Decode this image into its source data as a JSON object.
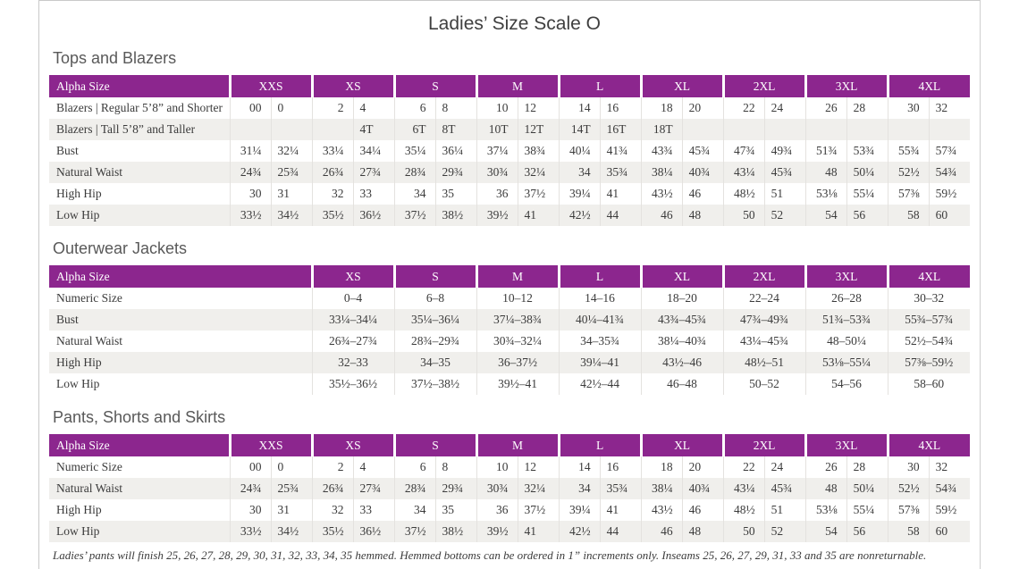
{
  "page": {
    "title": "Ladies’ Size Scale O",
    "footnote": "Ladies’ pants will finish 25, 26, 27, 28, 29, 30, 31, 32, 33, 34, 35 hemmed. Hemmed bottoms can be ordered in 1” increments only. Inseams 25, 26, 27, 29, 31, 33 and 35 are nonreturnable."
  },
  "colors": {
    "header_purple": "#8c268e",
    "stripe_gray": "#f0efec",
    "grid_line": "#e4e2df",
    "page_border": "#c9c9c9",
    "heading_gray": "#595959",
    "text_dark": "#3b3b3b"
  },
  "tables": [
    {
      "id": "tops-and-blazers",
      "heading": "Tops and Blazers",
      "layout": "paired",
      "header_label": "Alpha Size",
      "sizes": [
        "XXS",
        "XS",
        "S",
        "M",
        "L",
        "XL",
        "2XL",
        "3XL",
        "4XL"
      ],
      "rows": [
        {
          "label": "Blazers  |  Regular 5’8” and Shorter",
          "values": [
            "00",
            "0",
            "2",
            "4",
            "6",
            "8",
            "10",
            "12",
            "14",
            "16",
            "18",
            "20",
            "22",
            "24",
            "26",
            "28",
            "30",
            "32"
          ]
        },
        {
          "label": "Blazers  |  Tall 5’8” and Taller",
          "values": [
            "",
            "",
            "",
            "4T",
            "6T",
            "8T",
            "10T",
            "12T",
            "14T",
            "16T",
            "18T",
            "",
            "",
            "",
            "",
            "",
            "",
            ""
          ]
        },
        {
          "label": "Bust",
          "values": [
            "31¼",
            "32¼",
            "33¼",
            "34¼",
            "35¼",
            "36¼",
            "37¼",
            "38¾",
            "40¼",
            "41¾",
            "43¾",
            "45¾",
            "47¾",
            "49¾",
            "51¾",
            "53¾",
            "55¾",
            "57¾"
          ]
        },
        {
          "label": "Natural Waist",
          "values": [
            "24¾",
            "25¾",
            "26¾",
            "27¾",
            "28¾",
            "29¾",
            "30¾",
            "32¼",
            "34",
            "35¾",
            "38¼",
            "40¾",
            "43¼",
            "45¾",
            "48",
            "50¼",
            "52½",
            "54¾"
          ]
        },
        {
          "label": "High Hip",
          "values": [
            "30",
            "31",
            "32",
            "33",
            "34",
            "35",
            "36",
            "37½",
            "39¼",
            "41",
            "43½",
            "46",
            "48½",
            "51",
            "53⅛",
            "55¼",
            "57⅜",
            "59½"
          ]
        },
        {
          "label": "Low Hip",
          "values": [
            "33½",
            "34½",
            "35½",
            "36½",
            "37½",
            "38½",
            "39½",
            "41",
            "42½",
            "44",
            "46",
            "48",
            "50",
            "52",
            "54",
            "56",
            "58",
            "60"
          ]
        }
      ]
    },
    {
      "id": "outerwear-jackets",
      "heading": "Outerwear Jackets",
      "layout": "single",
      "header_label": "Alpha Size",
      "sizes": [
        "XS",
        "S",
        "M",
        "L",
        "XL",
        "2XL",
        "3XL",
        "4XL"
      ],
      "rows": [
        {
          "label": "Numeric Size",
          "values": [
            "0–4",
            "6–8",
            "10–12",
            "14–16",
            "18–20",
            "22–24",
            "26–28",
            "30–32"
          ]
        },
        {
          "label": "Bust",
          "values": [
            "33¼–34¼",
            "35¼–36¼",
            "37¼–38¾",
            "40¼–41¾",
            "43¾–45¾",
            "47¾–49¾",
            "51¾–53¾",
            "55¾–57¾"
          ]
        },
        {
          "label": "Natural Waist",
          "values": [
            "26¾–27¾",
            "28¾–29¾",
            "30¾–32¼",
            "34–35¾",
            "38¼–40¾",
            "43¼–45¾",
            "48–50¼",
            "52½–54¾"
          ]
        },
        {
          "label": "High Hip",
          "values": [
            "32–33",
            "34–35",
            "36–37½",
            "39¼–41",
            "43½–46",
            "48½–51",
            "53⅛–55¼",
            "57⅜–59½"
          ]
        },
        {
          "label": "Low Hip",
          "values": [
            "35½–36½",
            "37½–38½",
            "39½–41",
            "42½–44",
            "46–48",
            "50–52",
            "54–56",
            "58–60"
          ]
        }
      ]
    },
    {
      "id": "pants-shorts-and-skirts",
      "heading": "Pants, Shorts and Skirts",
      "layout": "paired",
      "header_label": "Alpha Size",
      "sizes": [
        "XXS",
        "XS",
        "S",
        "M",
        "L",
        "XL",
        "2XL",
        "3XL",
        "4XL"
      ],
      "rows": [
        {
          "label": "Numeric Size",
          "values": [
            "00",
            "0",
            "2",
            "4",
            "6",
            "8",
            "10",
            "12",
            "14",
            "16",
            "18",
            "20",
            "22",
            "24",
            "26",
            "28",
            "30",
            "32"
          ]
        },
        {
          "label": "Natural Waist",
          "values": [
            "24¾",
            "25¾",
            "26¾",
            "27¾",
            "28¾",
            "29¾",
            "30¾",
            "32¼",
            "34",
            "35¾",
            "38¼",
            "40¾",
            "43¼",
            "45¾",
            "48",
            "50¼",
            "52½",
            "54¾"
          ]
        },
        {
          "label": "High Hip",
          "values": [
            "30",
            "31",
            "32",
            "33",
            "34",
            "35",
            "36",
            "37½",
            "39¼",
            "41",
            "43½",
            "46",
            "48½",
            "51",
            "53⅛",
            "55¼",
            "57⅜",
            "59½"
          ]
        },
        {
          "label": "Low Hip",
          "values": [
            "33½",
            "34½",
            "35½",
            "36½",
            "37½",
            "38½",
            "39½",
            "41",
            "42½",
            "44",
            "46",
            "48",
            "50",
            "52",
            "54",
            "56",
            "58",
            "60"
          ]
        }
      ]
    }
  ]
}
